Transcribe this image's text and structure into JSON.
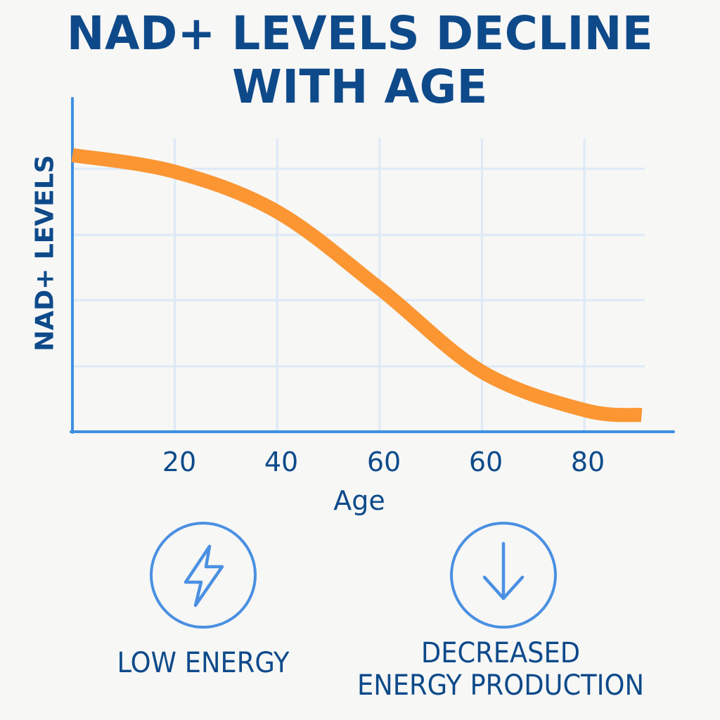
{
  "title_lines": [
    "NAD+ LEVELS DECLINE",
    "WITH AGE"
  ],
  "chart_data": {
    "type": "line",
    "title": "NAD+ LEVELS DECLINE WITH AGE",
    "xlabel": "Age",
    "ylabel": "NAD+ LEVELS",
    "x_tick_labels": [
      "20",
      "40",
      "60",
      "60",
      "80"
    ],
    "y_tick_labels": [],
    "grid": true,
    "legend": "none",
    "y_units": "relative (percent of axis height, no numeric scale shown)",
    "ylim": [
      0,
      100
    ],
    "series": [
      {
        "name": "NAD+ levels",
        "color": "#fb9633",
        "points": [
          {
            "x_tick_pos": 0,
            "y": 83
          },
          {
            "x_tick_pos": 1,
            "y": 78
          },
          {
            "x_tick_pos": 2,
            "y": 66
          },
          {
            "x_tick_pos": 3,
            "y": 43
          },
          {
            "x_tick_pos": 4,
            "y": 18
          },
          {
            "x_tick_pos": 5,
            "y": 6.5
          },
          {
            "x_tick_pos": 5.56,
            "y": 5
          }
        ]
      }
    ],
    "x_tick_pos_note": "0 = y-axis origin; 1..5 = positions of the five printed tick labels"
  },
  "colors": {
    "title": "#0e4a8a",
    "axis": "#3f8fe0",
    "grid": "#dde9f6",
    "line": "#fb9633",
    "icon": "#4a90e2"
  },
  "effects": [
    {
      "icon": "lightning-bolt-icon",
      "label_lines": [
        "LOW ENERGY"
      ]
    },
    {
      "icon": "arrow-down-icon",
      "label_lines": [
        "DECREASED",
        "ENERGY PRODUCTION"
      ]
    }
  ]
}
